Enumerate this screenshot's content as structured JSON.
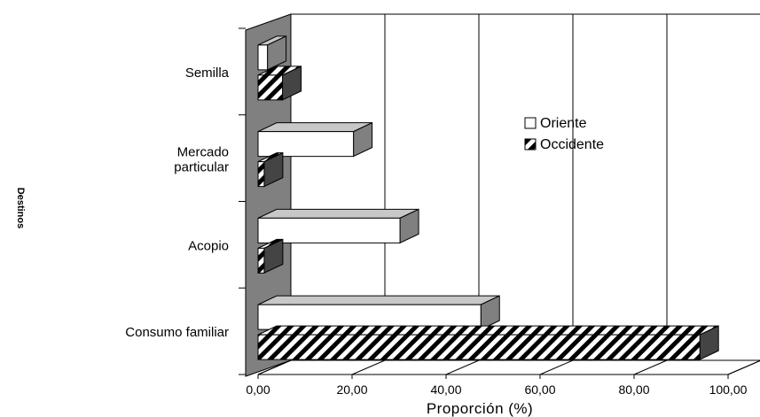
{
  "chart_data": {
    "type": "bar",
    "orientation": "horizontal",
    "three_d": true,
    "categories": [
      "Consumo familiar",
      "Acopio",
      "Mercado particular",
      "Semilla"
    ],
    "series": [
      {
        "name": "Oriente",
        "values": [
          47.4,
          30.2,
          20.3,
          2.0
        ],
        "fill": "#ffffff"
      },
      {
        "name": "Occidente",
        "values": [
          94.0,
          1.3,
          1.3,
          5.2
        ],
        "fill": "hatch"
      }
    ],
    "xlabel": "Proporción (%)",
    "ylabel": "Destinos",
    "xlim": [
      0,
      100
    ],
    "xticks": [
      "0,00",
      "20,00",
      "40,00",
      "60,00",
      "80,00",
      "100,00"
    ],
    "grid": "vertical",
    "legend_position": "right",
    "wall_color": "#808080"
  }
}
